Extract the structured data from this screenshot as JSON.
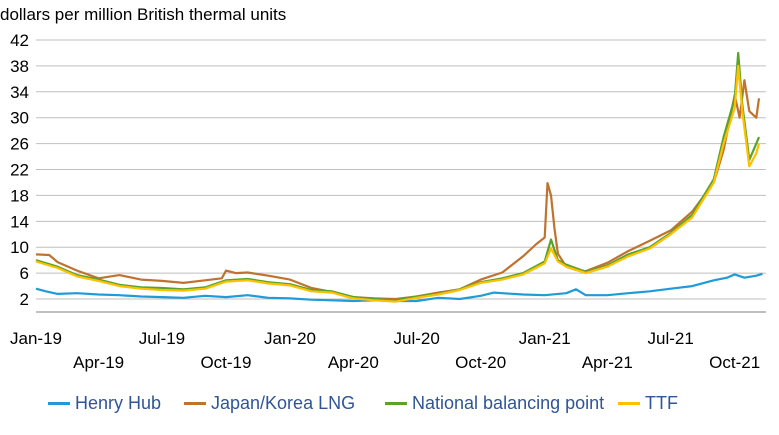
{
  "chart_data": {
    "type": "line",
    "ylabel": "dollars per million British thermal units",
    "xlabel": "",
    "title": "",
    "ylim": [
      0,
      42
    ],
    "yticks": [
      2,
      6,
      10,
      14,
      18,
      22,
      26,
      30,
      34,
      38,
      42
    ],
    "xlim": [
      "2019-01-01",
      "2021-11-15"
    ],
    "xticks_upper": [
      {
        "date": "2019-01-01",
        "label": "Jan-19"
      },
      {
        "date": "2019-07-01",
        "label": "Jul-19"
      },
      {
        "date": "2020-01-01",
        "label": "Jan-20"
      },
      {
        "date": "2020-07-01",
        "label": "Jul-20"
      },
      {
        "date": "2021-01-01",
        "label": "Jan-21"
      },
      {
        "date": "2021-07-01",
        "label": "Jul-21"
      }
    ],
    "xticks_lower": [
      {
        "date": "2019-04-01",
        "label": "Apr-19"
      },
      {
        "date": "2019-10-01",
        "label": "Oct-19"
      },
      {
        "date": "2020-04-01",
        "label": "Apr-20"
      },
      {
        "date": "2020-10-01",
        "label": "Oct-20"
      },
      {
        "date": "2021-04-01",
        "label": "Apr-21"
      },
      {
        "date": "2021-10-01",
        "label": "Oct-21"
      }
    ],
    "grid": "horizontal",
    "legend_position": "bottom",
    "series": [
      {
        "name": "Henry Hub",
        "color": "#1f9bd7",
        "points": [
          [
            "2019-01-01",
            3.6
          ],
          [
            "2019-01-15",
            3.2
          ],
          [
            "2019-02-01",
            2.8
          ],
          [
            "2019-03-01",
            2.9
          ],
          [
            "2019-04-01",
            2.7
          ],
          [
            "2019-05-01",
            2.6
          ],
          [
            "2019-06-01",
            2.4
          ],
          [
            "2019-07-01",
            2.3
          ],
          [
            "2019-08-01",
            2.2
          ],
          [
            "2019-09-01",
            2.5
          ],
          [
            "2019-10-01",
            2.3
          ],
          [
            "2019-11-01",
            2.6
          ],
          [
            "2019-12-01",
            2.2
          ],
          [
            "2020-01-01",
            2.1
          ],
          [
            "2020-02-01",
            1.9
          ],
          [
            "2020-03-01",
            1.8
          ],
          [
            "2020-04-01",
            1.7
          ],
          [
            "2020-05-01",
            1.8
          ],
          [
            "2020-06-01",
            1.7
          ],
          [
            "2020-07-01",
            1.7
          ],
          [
            "2020-08-01",
            2.2
          ],
          [
            "2020-09-01",
            2.0
          ],
          [
            "2020-10-01",
            2.5
          ],
          [
            "2020-10-20",
            3.0
          ],
          [
            "2020-11-01",
            2.9
          ],
          [
            "2020-12-01",
            2.7
          ],
          [
            "2021-01-01",
            2.6
          ],
          [
            "2021-02-01",
            2.9
          ],
          [
            "2021-02-15",
            3.5
          ],
          [
            "2021-03-01",
            2.6
          ],
          [
            "2021-04-01",
            2.6
          ],
          [
            "2021-05-01",
            2.9
          ],
          [
            "2021-06-01",
            3.2
          ],
          [
            "2021-07-01",
            3.6
          ],
          [
            "2021-08-01",
            4.0
          ],
          [
            "2021-09-01",
            4.9
          ],
          [
            "2021-09-20",
            5.3
          ],
          [
            "2021-10-01",
            5.8
          ],
          [
            "2021-10-15",
            5.3
          ],
          [
            "2021-11-01",
            5.6
          ],
          [
            "2021-11-10",
            5.9
          ]
        ]
      },
      {
        "name": "Japan/Korea LNG",
        "color": "#c0722f",
        "points": [
          [
            "2019-01-01",
            8.9
          ],
          [
            "2019-01-20",
            8.8
          ],
          [
            "2019-02-01",
            7.7
          ],
          [
            "2019-03-01",
            6.4
          ],
          [
            "2019-04-01",
            5.2
          ],
          [
            "2019-05-01",
            5.7
          ],
          [
            "2019-06-01",
            5.0
          ],
          [
            "2019-07-01",
            4.8
          ],
          [
            "2019-08-01",
            4.5
          ],
          [
            "2019-09-01",
            4.9
          ],
          [
            "2019-09-25",
            5.2
          ],
          [
            "2019-10-01",
            6.4
          ],
          [
            "2019-10-15",
            6.0
          ],
          [
            "2019-11-01",
            6.1
          ],
          [
            "2019-12-01",
            5.6
          ],
          [
            "2020-01-01",
            5.0
          ],
          [
            "2020-02-01",
            3.7
          ],
          [
            "2020-03-01",
            3.1
          ],
          [
            "2020-04-01",
            2.3
          ],
          [
            "2020-05-01",
            2.1
          ],
          [
            "2020-06-01",
            2.0
          ],
          [
            "2020-07-01",
            2.4
          ],
          [
            "2020-08-01",
            3.0
          ],
          [
            "2020-09-01",
            3.5
          ],
          [
            "2020-10-01",
            5.0
          ],
          [
            "2020-11-01",
            6.1
          ],
          [
            "2020-12-01",
            8.6
          ],
          [
            "2020-12-20",
            10.5
          ],
          [
            "2021-01-01",
            11.5
          ],
          [
            "2021-01-05",
            19.9
          ],
          [
            "2021-01-10",
            18.0
          ],
          [
            "2021-01-15",
            13.0
          ],
          [
            "2021-01-20",
            9.0
          ],
          [
            "2021-02-01",
            7.0
          ],
          [
            "2021-02-15",
            6.5
          ],
          [
            "2021-03-01",
            6.3
          ],
          [
            "2021-04-01",
            7.6
          ],
          [
            "2021-05-01",
            9.4
          ],
          [
            "2021-06-01",
            11.0
          ],
          [
            "2021-07-01",
            12.6
          ],
          [
            "2021-08-01",
            15.5
          ],
          [
            "2021-09-01",
            20.0
          ],
          [
            "2021-09-15",
            25.0
          ],
          [
            "2021-10-01",
            33.5
          ],
          [
            "2021-10-08",
            30.0
          ],
          [
            "2021-10-15",
            35.8
          ],
          [
            "2021-10-22",
            31.0
          ],
          [
            "2021-11-01",
            30.0
          ],
          [
            "2021-11-05",
            33.0
          ]
        ]
      },
      {
        "name": "National balancing point",
        "color": "#59a22b",
        "points": [
          [
            "2019-01-01",
            8.0
          ],
          [
            "2019-02-01",
            7.0
          ],
          [
            "2019-03-01",
            5.7
          ],
          [
            "2019-04-01",
            5.0
          ],
          [
            "2019-05-01",
            4.2
          ],
          [
            "2019-06-01",
            3.8
          ],
          [
            "2019-07-01",
            3.7
          ],
          [
            "2019-08-01",
            3.5
          ],
          [
            "2019-09-01",
            3.8
          ],
          [
            "2019-10-01",
            4.9
          ],
          [
            "2019-11-01",
            5.1
          ],
          [
            "2019-12-01",
            4.6
          ],
          [
            "2020-01-01",
            4.3
          ],
          [
            "2020-02-01",
            3.4
          ],
          [
            "2020-03-01",
            3.2
          ],
          [
            "2020-04-01",
            2.3
          ],
          [
            "2020-05-01",
            2.0
          ],
          [
            "2020-06-01",
            1.8
          ],
          [
            "2020-07-01",
            2.4
          ],
          [
            "2020-08-01",
            2.8
          ],
          [
            "2020-09-01",
            3.5
          ],
          [
            "2020-10-01",
            4.6
          ],
          [
            "2020-11-01",
            5.2
          ],
          [
            "2020-12-01",
            6.0
          ],
          [
            "2021-01-01",
            7.8
          ],
          [
            "2021-01-10",
            11.2
          ],
          [
            "2021-01-20",
            8.0
          ],
          [
            "2021-02-01",
            7.3
          ],
          [
            "2021-03-01",
            6.2
          ],
          [
            "2021-04-01",
            7.2
          ],
          [
            "2021-05-01",
            8.9
          ],
          [
            "2021-06-01",
            10.0
          ],
          [
            "2021-07-01",
            12.2
          ],
          [
            "2021-08-01",
            15.0
          ],
          [
            "2021-09-01",
            20.5
          ],
          [
            "2021-09-15",
            27.0
          ],
          [
            "2021-10-01",
            33.0
          ],
          [
            "2021-10-06",
            40.0
          ],
          [
            "2021-10-12",
            32.0
          ],
          [
            "2021-10-22",
            23.5
          ],
          [
            "2021-11-01",
            26.0
          ],
          [
            "2021-11-05",
            27.0
          ]
        ]
      },
      {
        "name": "TTF",
        "color": "#ffc000",
        "points": [
          [
            "2019-01-01",
            7.8
          ],
          [
            "2019-02-01",
            6.8
          ],
          [
            "2019-03-01",
            5.5
          ],
          [
            "2019-04-01",
            4.8
          ],
          [
            "2019-05-01",
            4.0
          ],
          [
            "2019-06-01",
            3.6
          ],
          [
            "2019-07-01",
            3.4
          ],
          [
            "2019-08-01",
            3.3
          ],
          [
            "2019-09-01",
            3.6
          ],
          [
            "2019-10-01",
            4.7
          ],
          [
            "2019-11-01",
            4.9
          ],
          [
            "2019-12-01",
            4.4
          ],
          [
            "2020-01-01",
            4.1
          ],
          [
            "2020-02-01",
            3.2
          ],
          [
            "2020-03-01",
            3.0
          ],
          [
            "2020-04-01",
            2.1
          ],
          [
            "2020-05-01",
            1.8
          ],
          [
            "2020-06-01",
            1.6
          ],
          [
            "2020-07-01",
            2.2
          ],
          [
            "2020-08-01",
            2.7
          ],
          [
            "2020-09-01",
            3.4
          ],
          [
            "2020-10-01",
            4.5
          ],
          [
            "2020-11-01",
            5.0
          ],
          [
            "2020-12-01",
            5.8
          ],
          [
            "2021-01-01",
            7.5
          ],
          [
            "2021-01-10",
            9.8
          ],
          [
            "2021-01-20",
            7.8
          ],
          [
            "2021-02-01",
            7.0
          ],
          [
            "2021-03-01",
            6.0
          ],
          [
            "2021-04-01",
            7.0
          ],
          [
            "2021-05-01",
            8.6
          ],
          [
            "2021-06-01",
            9.8
          ],
          [
            "2021-07-01",
            12.0
          ],
          [
            "2021-08-01",
            14.6
          ],
          [
            "2021-09-01",
            20.0
          ],
          [
            "2021-09-15",
            26.0
          ],
          [
            "2021-10-01",
            31.5
          ],
          [
            "2021-10-06",
            38.0
          ],
          [
            "2021-10-12",
            31.0
          ],
          [
            "2021-10-22",
            22.5
          ],
          [
            "2021-11-01",
            24.5
          ],
          [
            "2021-11-05",
            26.0
          ]
        ]
      }
    ]
  }
}
